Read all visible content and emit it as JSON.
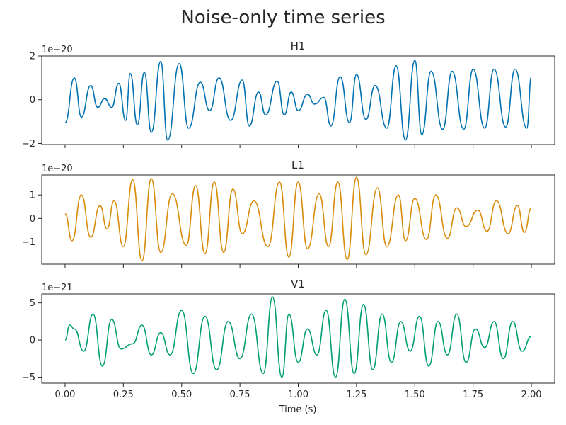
{
  "chart_data": {
    "type": "line",
    "title": "Noise-only time series",
    "xlabel": "Time (s)",
    "xlim": [
      -0.1,
      2.1
    ],
    "x_ticks": [
      0.0,
      0.25,
      0.5,
      0.75,
      1.0,
      1.25,
      1.5,
      1.75,
      2.0
    ],
    "x_tick_labels": [
      "0.00",
      "0.25",
      "0.50",
      "0.75",
      "1.00",
      "1.25",
      "1.50",
      "1.75",
      "2.00"
    ],
    "panels": [
      {
        "title": "H1",
        "color": "#0072b2",
        "offset_label": "1e−20",
        "ylim": [
          -2.05e-20,
          2e-20
        ],
        "y_ticks": [
          -2e-20,
          0,
          2e-20
        ],
        "y_tick_labels": [
          "−2",
          "0",
          "2"
        ],
        "x": [
          0.0,
          0.04,
          0.07,
          0.11,
          0.14,
          0.17,
          0.2,
          0.23,
          0.26,
          0.28,
          0.31,
          0.34,
          0.37,
          0.41,
          0.44,
          0.49,
          0.53,
          0.58,
          0.62,
          0.66,
          0.71,
          0.76,
          0.79,
          0.83,
          0.86,
          0.91,
          0.94,
          0.97,
          1.0,
          1.04,
          1.07,
          1.11,
          1.14,
          1.18,
          1.22,
          1.25,
          1.29,
          1.33,
          1.38,
          1.42,
          1.46,
          1.5,
          1.53,
          1.57,
          1.62,
          1.66,
          1.71,
          1.75,
          1.8,
          1.84,
          1.89,
          1.93,
          1.98,
          2.0
        ],
        "y": [
          -1.05e-20,
          1e-20,
          -8e-21,
          6.5e-21,
          -3.5e-21,
          5e-22,
          -3.5e-21,
          7.5e-21,
          -9.5e-21,
          1.2e-20,
          -1.15e-20,
          1.25e-20,
          -1.5e-20,
          1.75e-20,
          -1.85e-20,
          1.65e-20,
          -1.3e-20,
          8e-21,
          -5e-21,
          1e-20,
          -9.5e-21,
          9e-21,
          -1.2e-20,
          3.5e-21,
          -7e-21,
          8.5e-21,
          -7e-21,
          3.5e-21,
          -5e-21,
          2.5e-21,
          -2e-21,
          1e-21,
          -1.2e-20,
          1.05e-20,
          -1.05e-20,
          1.15e-20,
          -9e-21,
          6.5e-21,
          -1.3e-20,
          1.55e-20,
          -1.85e-20,
          1.8e-20,
          -1.6e-20,
          1.3e-20,
          -1.35e-20,
          1.3e-20,
          -1.35e-20,
          1.4e-20,
          -1.3e-20,
          1.4e-20,
          -1.25e-20,
          1.4e-20,
          -1.3e-20,
          1.05e-20
        ]
      },
      {
        "title": "L1",
        "color": "#d98c0a",
        "offset_label": "1e−20",
        "ylim": [
          -1.95e-20,
          1.85e-20
        ],
        "y_ticks": [
          -1e-20,
          0,
          1e-20
        ],
        "y_tick_labels": [
          "−1",
          "0",
          "1"
        ],
        "x": [
          0.0,
          0.03,
          0.07,
          0.11,
          0.15,
          0.18,
          0.21,
          0.25,
          0.29,
          0.33,
          0.37,
          0.41,
          0.46,
          0.52,
          0.56,
          0.6,
          0.64,
          0.68,
          0.72,
          0.76,
          0.81,
          0.87,
          0.92,
          0.96,
          1.0,
          1.04,
          1.09,
          1.13,
          1.17,
          1.21,
          1.25,
          1.29,
          1.34,
          1.38,
          1.43,
          1.46,
          1.5,
          1.55,
          1.59,
          1.64,
          1.68,
          1.72,
          1.77,
          1.81,
          1.85,
          1.9,
          1.94,
          1.97,
          2.0
        ],
        "y": [
          2e-21,
          -9.5e-21,
          1e-20,
          -8e-21,
          5.5e-21,
          -4.5e-21,
          7.5e-21,
          -1.2e-20,
          1.65e-20,
          -1.8e-20,
          1.7e-20,
          -1.45e-20,
          1.05e-20,
          -1.15e-20,
          1.4e-20,
          -1.5e-20,
          1.55e-20,
          -1.45e-20,
          1.25e-20,
          -6.5e-21,
          7.5e-21,
          -1.2e-20,
          1.55e-20,
          -1.65e-20,
          1.55e-20,
          -1.3e-20,
          1.05e-20,
          -1.2e-20,
          1.55e-20,
          -1.75e-20,
          1.75e-20,
          -1.55e-20,
          1.3e-20,
          -1.2e-20,
          1e-20,
          -9.5e-21,
          8.5e-21,
          -9e-21,
          1e-20,
          -8.5e-21,
          4.5e-21,
          -3.5e-21,
          3.5e-21,
          -5.5e-21,
          7.5e-21,
          -6.5e-21,
          5.5e-21,
          -6e-21,
          4.5e-21
        ]
      },
      {
        "title": "V1",
        "color": "#009e73",
        "offset_label": "1e−21",
        "ylim": [
          -5.8e-21,
          6.2e-21
        ],
        "y_ticks": [
          -5e-21,
          0,
          5e-21
        ],
        "y_tick_labels": [
          "−5",
          "0",
          "5"
        ],
        "x": [
          0.0,
          0.02,
          0.04,
          0.08,
          0.12,
          0.16,
          0.2,
          0.24,
          0.29,
          0.33,
          0.37,
          0.41,
          0.45,
          0.5,
          0.55,
          0.6,
          0.65,
          0.7,
          0.75,
          0.8,
          0.85,
          0.89,
          0.93,
          0.96,
          1.0,
          1.04,
          1.08,
          1.12,
          1.16,
          1.2,
          1.24,
          1.28,
          1.32,
          1.36,
          1.4,
          1.44,
          1.48,
          1.52,
          1.56,
          1.6,
          1.64,
          1.68,
          1.72,
          1.76,
          1.8,
          1.84,
          1.88,
          1.92,
          1.96,
          2.0
        ],
        "y": [
          0.0,
          2e-21,
          1.5e-21,
          -1.5e-21,
          3.5e-21,
          -3.5e-21,
          2.8e-21,
          -1.2e-21,
          -5e-22,
          2e-21,
          -2e-21,
          1e-21,
          -2e-21,
          4e-21,
          -4.5e-21,
          3.2e-21,
          -4e-21,
          2.5e-21,
          -2.5e-21,
          3.5e-21,
          -4.5e-21,
          5.8e-21,
          -5e-21,
          3.5e-21,
          -3e-21,
          1.5e-21,
          -2e-21,
          4e-21,
          -5e-21,
          5.5e-21,
          -4.5e-21,
          4.8e-21,
          -4e-21,
          3.5e-21,
          -3e-21,
          2.5e-21,
          -1.5e-21,
          3.2e-21,
          -3.5e-21,
          2.5e-21,
          -2e-21,
          3.5e-21,
          -3e-21,
          1.5e-21,
          -1e-21,
          2.5e-21,
          -2.5e-21,
          2.5e-21,
          -1.5e-21,
          5e-22
        ]
      }
    ]
  }
}
